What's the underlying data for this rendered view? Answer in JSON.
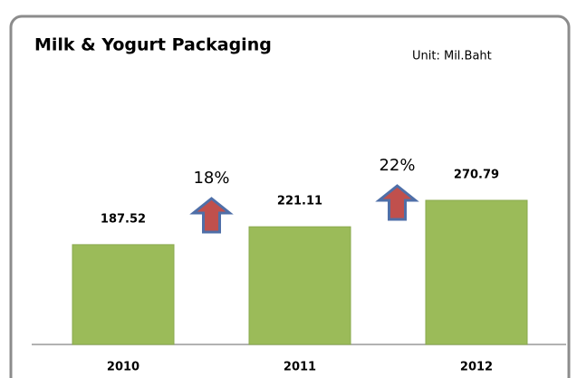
{
  "chart_data": {
    "type": "bar",
    "title": "Milk & Yogurt Packaging",
    "unit": "Unit: Mil.Baht",
    "categories": [
      "2010",
      "2011",
      "2012"
    ],
    "values": [
      187.52,
      221.11,
      270.79
    ],
    "color": "#9bbb59",
    "annotations": [
      "18%",
      "22%"
    ]
  }
}
